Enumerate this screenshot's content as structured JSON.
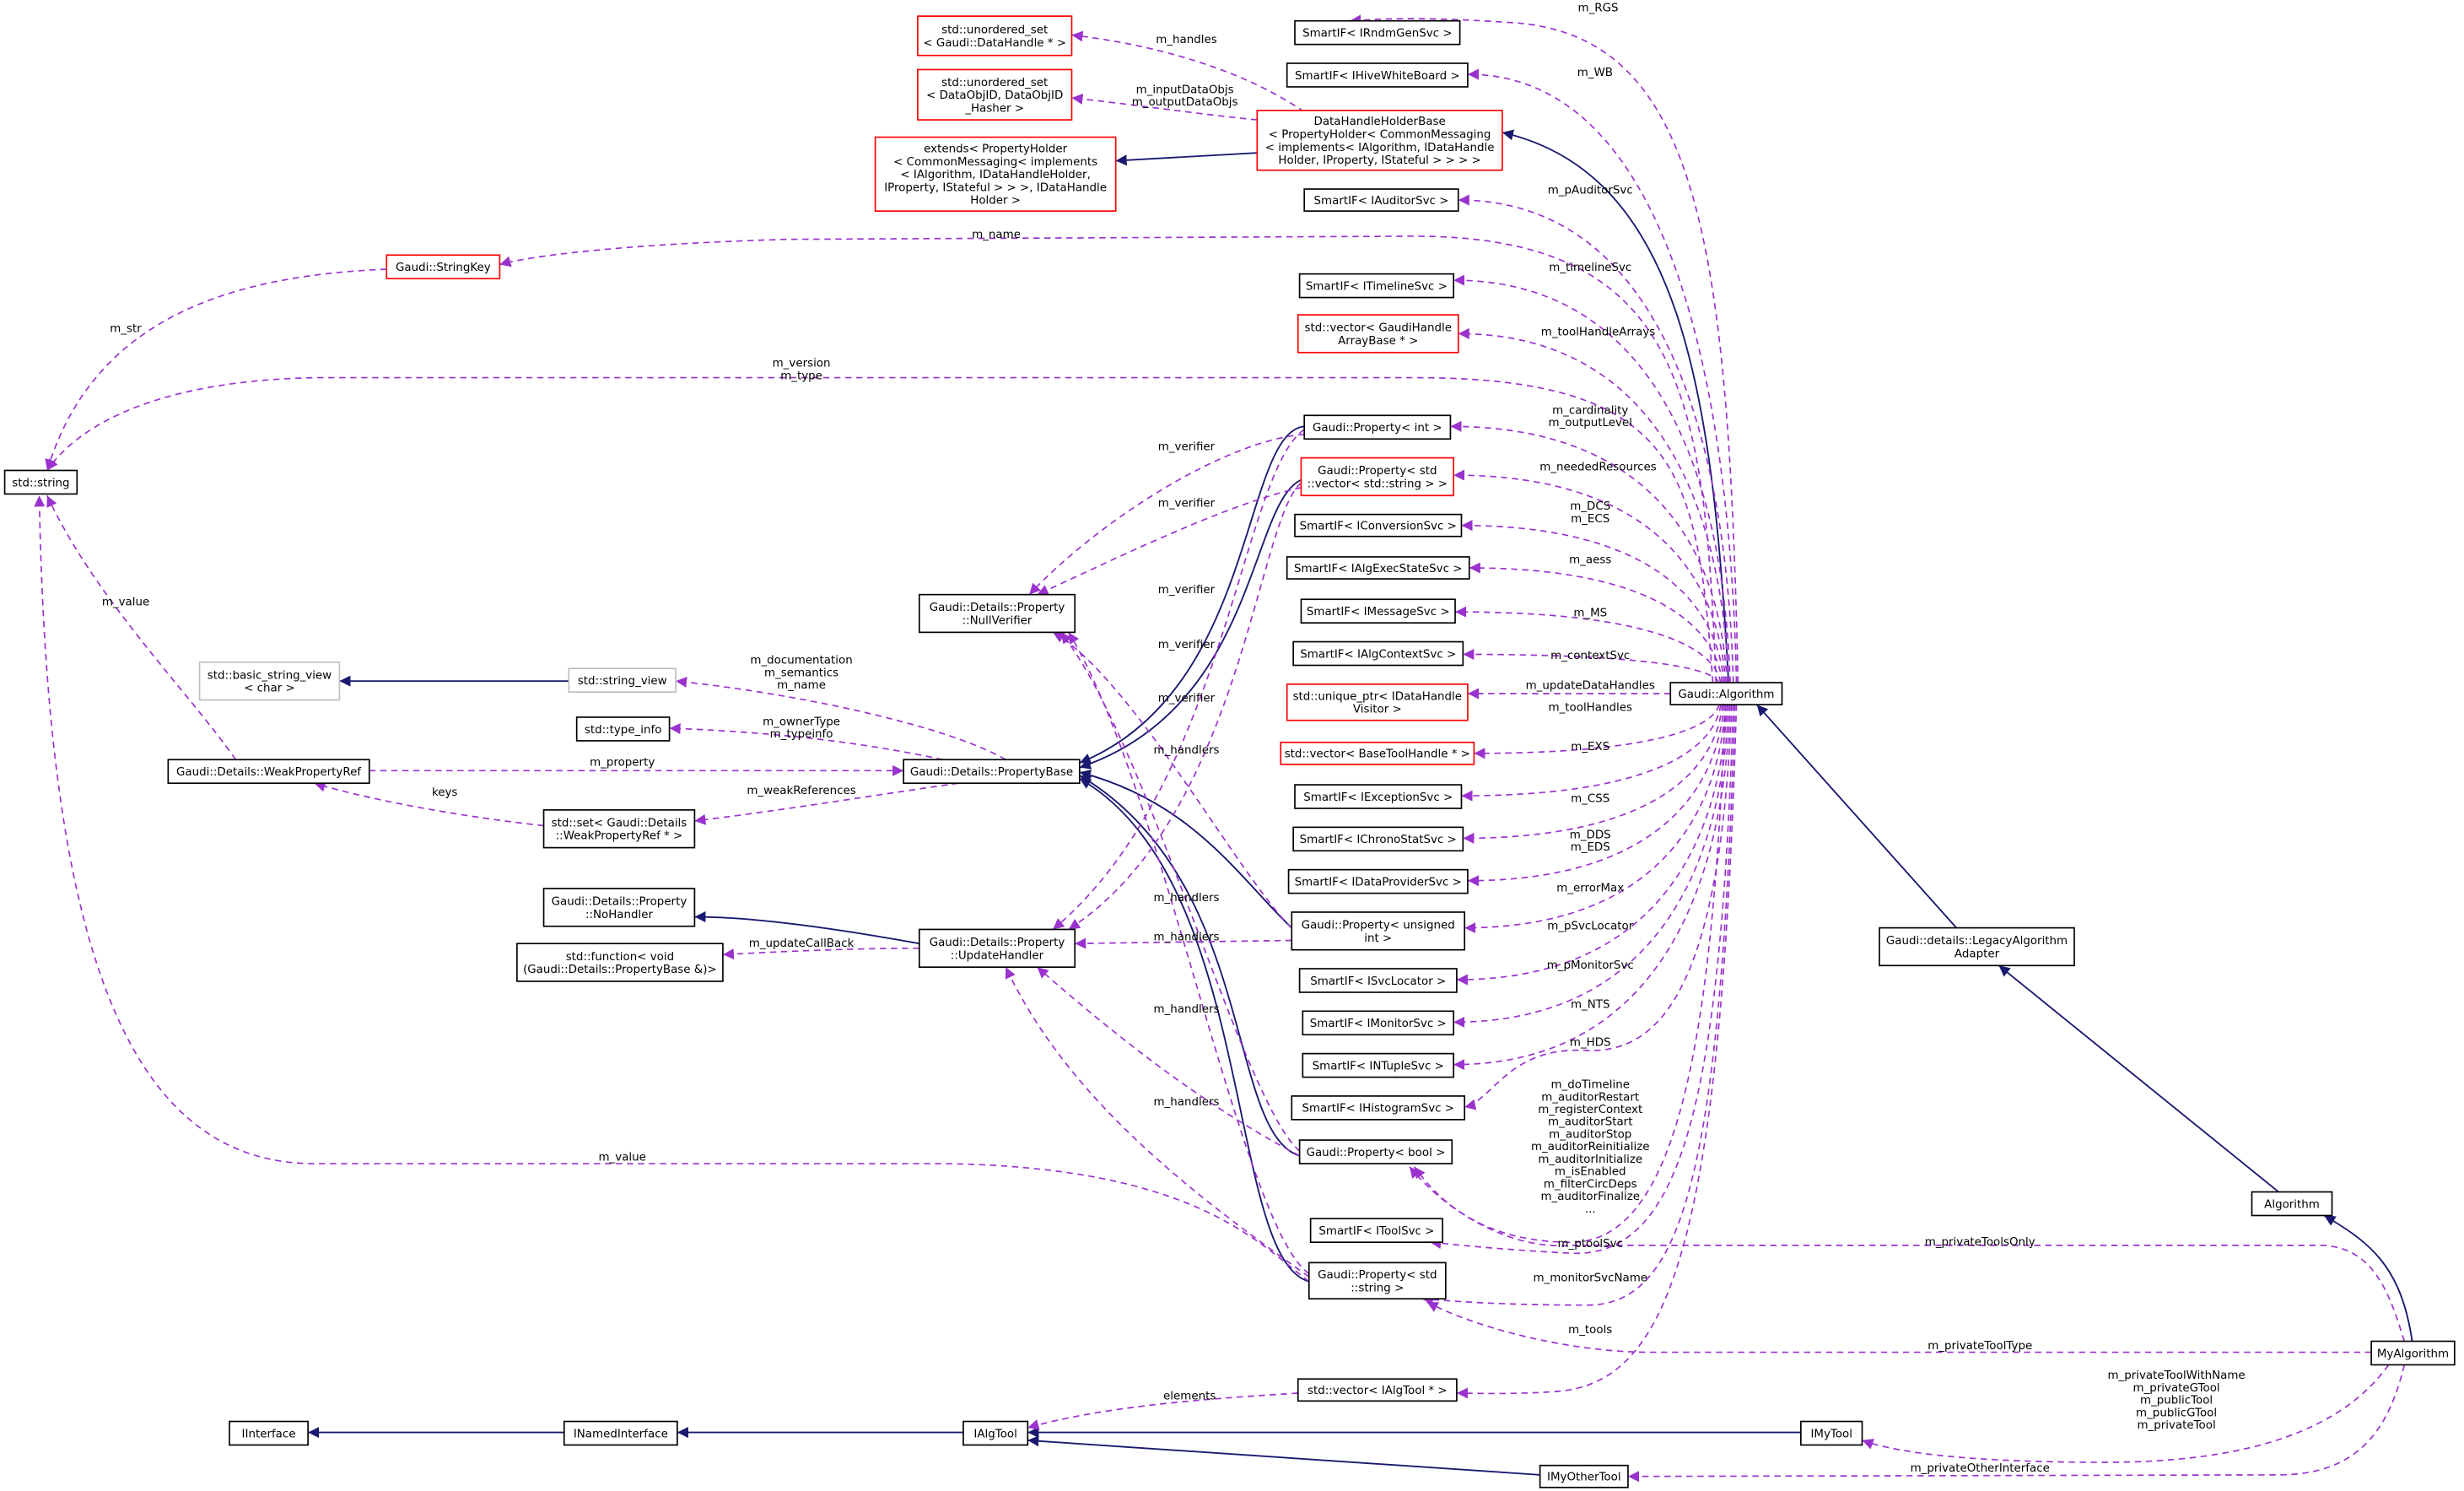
{
  "colors": {
    "inheritance_edge": "#191970",
    "usage_edge": "#9a32cd",
    "border_documented": "#000000",
    "border_truncated": "#ff0000",
    "border_external": "#bfbfbf",
    "focus_node_fill": "#bfbfbf",
    "background": "#ffffff"
  },
  "nodes": [
    {
      "id": "rndm",
      "lines": [
        "SmartIF< IRndmGenSvc >"
      ],
      "border": "black"
    },
    {
      "id": "hive",
      "lines": [
        "SmartIF< IHiveWhiteBoard >"
      ],
      "border": "black"
    },
    {
      "id": "uset_dh",
      "lines": [
        "std::unordered_set",
        "< Gaudi::DataHandle * >"
      ],
      "border": "red"
    },
    {
      "id": "uset_doid",
      "lines": [
        "std::unordered_set",
        "< DataObjID, DataObjID",
        "_Hasher >"
      ],
      "border": "red"
    },
    {
      "id": "dhhb",
      "lines": [
        "DataHandleHolderBase",
        "< PropertyHolder< CommonMessaging",
        "< implements< IAlgorithm, IDataHandle",
        "Holder, IProperty, IStateful > > > >"
      ],
      "border": "red"
    },
    {
      "id": "extends",
      "lines": [
        "extends< PropertyHolder",
        "< CommonMessaging< implements",
        "< IAlgorithm, IDataHandleHolder,",
        "IProperty, IStateful > > >, IDataHandle",
        "Holder >"
      ],
      "border": "red"
    },
    {
      "id": "auditor",
      "lines": [
        "SmartIF< IAuditorSvc >"
      ],
      "border": "black"
    },
    {
      "id": "stringkey",
      "lines": [
        "Gaudi::StringKey"
      ],
      "border": "red"
    },
    {
      "id": "timeline",
      "lines": [
        "SmartIF< ITimelineSvc >"
      ],
      "border": "black"
    },
    {
      "id": "gharr",
      "lines": [
        "std::vector< GaudiHandle",
        "ArrayBase * >"
      ],
      "border": "red"
    },
    {
      "id": "string",
      "lines": [
        "std::string"
      ],
      "border": "black"
    },
    {
      "id": "pint",
      "lines": [
        "Gaudi::Property< int >"
      ],
      "border": "black"
    },
    {
      "id": "pvec",
      "lines": [
        "Gaudi::Property< std",
        "::vector< std::string > >"
      ],
      "border": "red"
    },
    {
      "id": "conv",
      "lines": [
        "SmartIF< IConversionSvc >"
      ],
      "border": "black"
    },
    {
      "id": "aess",
      "lines": [
        "SmartIF< IAlgExecStateSvc >"
      ],
      "border": "black"
    },
    {
      "id": "msg",
      "lines": [
        "SmartIF< IMessageSvc >"
      ],
      "border": "black"
    },
    {
      "id": "nullver",
      "lines": [
        "Gaudi::Details::Property",
        "::NullVerifier"
      ],
      "border": "black"
    },
    {
      "id": "ctx",
      "lines": [
        "SmartIF< IAlgContextSvc >"
      ],
      "border": "black"
    },
    {
      "id": "bsv",
      "lines": [
        "std::basic_string_view",
        "< char >"
      ],
      "border": "gray"
    },
    {
      "id": "sv",
      "lines": [
        "std::string_view"
      ],
      "border": "gray"
    },
    {
      "id": "uptr",
      "lines": [
        "std::unique_ptr< IDataHandle",
        "Visitor >"
      ],
      "border": "red"
    },
    {
      "id": "galg",
      "lines": [
        "Gaudi::Algorithm"
      ],
      "border": "black"
    },
    {
      "id": "typeinfo",
      "lines": [
        "std::type_info"
      ],
      "border": "black"
    },
    {
      "id": "vbth",
      "lines": [
        "std::vector< BaseToolHandle * >"
      ],
      "border": "red"
    },
    {
      "id": "wpr",
      "lines": [
        "Gaudi::Details::WeakPropertyRef"
      ],
      "border": "black"
    },
    {
      "id": "pbase",
      "lines": [
        "Gaudi::Details::PropertyBase"
      ],
      "border": "black"
    },
    {
      "id": "set",
      "lines": [
        "std::set< Gaudi::Details",
        "::WeakPropertyRef * >"
      ],
      "border": "black"
    },
    {
      "id": "exc",
      "lines": [
        "SmartIF< IExceptionSvc >"
      ],
      "border": "black"
    },
    {
      "id": "chrono",
      "lines": [
        "SmartIF< IChronoStatSvc >"
      ],
      "border": "black"
    },
    {
      "id": "dps",
      "lines": [
        "SmartIF< IDataProviderSvc >"
      ],
      "border": "black"
    },
    {
      "id": "nohandler",
      "lines": [
        "Gaudi::Details::Property",
        "::NoHandler"
      ],
      "border": "black"
    },
    {
      "id": "puns",
      "lines": [
        "Gaudi::Property< unsigned",
        "int >"
      ],
      "border": "black"
    },
    {
      "id": "legacy",
      "lines": [
        "Gaudi::details::LegacyAlgorithm",
        "Adapter"
      ],
      "border": "black"
    },
    {
      "id": "uhandler",
      "lines": [
        "Gaudi::Details::Property",
        "::UpdateHandler"
      ],
      "border": "black"
    },
    {
      "id": "func",
      "lines": [
        "std::function< void",
        "(Gaudi::Details::PropertyBase &)>"
      ],
      "border": "black"
    },
    {
      "id": "svcloc",
      "lines": [
        "SmartIF< ISvcLocator >"
      ],
      "border": "black"
    },
    {
      "id": "mon",
      "lines": [
        "SmartIF< IMonitorSvc >"
      ],
      "border": "black"
    },
    {
      "id": "ntuple",
      "lines": [
        "SmartIF< INTupleSvc >"
      ],
      "border": "black"
    },
    {
      "id": "hist",
      "lines": [
        "SmartIF< IHistogramSvc >"
      ],
      "border": "black"
    },
    {
      "id": "pbool",
      "lines": [
        "Gaudi::Property< bool >"
      ],
      "border": "black"
    },
    {
      "id": "alg",
      "lines": [
        "Algorithm"
      ],
      "border": "black"
    },
    {
      "id": "toolsvc",
      "lines": [
        "SmartIF< IToolSvc >"
      ],
      "border": "black"
    },
    {
      "id": "pstr",
      "lines": [
        "Gaudi::Property< std",
        "::string >"
      ],
      "border": "black"
    },
    {
      "id": "myalg",
      "lines": [
        "MyAlgorithm"
      ],
      "border": "focus"
    },
    {
      "id": "valgtool",
      "lines": [
        "std::vector< IAlgTool * >"
      ],
      "border": "black"
    },
    {
      "id": "iinterface",
      "lines": [
        "IInterface"
      ],
      "border": "black"
    },
    {
      "id": "inamed",
      "lines": [
        "INamedInterface"
      ],
      "border": "black"
    },
    {
      "id": "ialgtool",
      "lines": [
        "IAlgTool"
      ],
      "border": "black"
    },
    {
      "id": "imytool",
      "lines": [
        "IMyTool"
      ],
      "border": "black"
    },
    {
      "id": "imyother",
      "lines": [
        "IMyOtherTool"
      ],
      "border": "black"
    }
  ],
  "edges": [
    {
      "from": "galg",
      "to": "dhhb",
      "style": "inherit",
      "labels": []
    },
    {
      "from": "dhhb",
      "to": "extends",
      "style": "inherit",
      "labels": []
    },
    {
      "from": "legacy",
      "to": "galg",
      "style": "inherit",
      "labels": []
    },
    {
      "from": "alg",
      "to": "legacy",
      "style": "inherit",
      "labels": []
    },
    {
      "from": "myalg",
      "to": "alg",
      "style": "inherit",
      "labels": []
    },
    {
      "from": "inamed",
      "to": "iinterface",
      "style": "inherit",
      "labels": []
    },
    {
      "from": "ialgtool",
      "to": "inamed",
      "style": "inherit",
      "labels": []
    },
    {
      "from": "imytool",
      "to": "ialgtool",
      "style": "inherit",
      "labels": []
    },
    {
      "from": "imyother",
      "to": "ialgtool",
      "style": "inherit",
      "labels": []
    },
    {
      "from": "sv",
      "to": "bsv",
      "style": "inherit",
      "labels": []
    },
    {
      "from": "uhandler",
      "to": "nohandler",
      "style": "inherit",
      "labels": []
    },
    {
      "from": "pint",
      "to": "pbase",
      "style": "inherit",
      "labels": []
    },
    {
      "from": "pvec",
      "to": "pbase",
      "style": "inherit",
      "labels": []
    },
    {
      "from": "puns",
      "to": "pbase",
      "style": "inherit",
      "labels": []
    },
    {
      "from": "pbool",
      "to": "pbase",
      "style": "inherit",
      "labels": []
    },
    {
      "from": "pstr",
      "to": "pbase",
      "style": "inherit",
      "labels": []
    },
    {
      "from": "dhhb",
      "to": "uset_dh",
      "style": "usage",
      "labels": [
        "m_handles"
      ]
    },
    {
      "from": "dhhb",
      "to": "uset_doid",
      "style": "usage",
      "labels": [
        "m_inputDataObjs",
        "m_outputDataObjs"
      ]
    },
    {
      "from": "galg",
      "to": "rndm",
      "style": "usage",
      "labels": [
        "m_RGS"
      ]
    },
    {
      "from": "galg",
      "to": "hive",
      "style": "usage",
      "labels": [
        "m_WB"
      ]
    },
    {
      "from": "galg",
      "to": "auditor",
      "style": "usage",
      "labels": [
        "m_pAuditorSvc"
      ]
    },
    {
      "from": "galg",
      "to": "stringkey",
      "style": "usage",
      "labels": [
        "m_name"
      ]
    },
    {
      "from": "galg",
      "to": "timeline",
      "style": "usage",
      "labels": [
        "m_timelineSvc"
      ]
    },
    {
      "from": "galg",
      "to": "gharr",
      "style": "usage",
      "labels": [
        "m_toolHandleArrays"
      ]
    },
    {
      "from": "galg",
      "to": "string",
      "style": "usage",
      "labels": [
        "m_version",
        "m_type"
      ]
    },
    {
      "from": "galg",
      "to": "pint",
      "style": "usage",
      "labels": [
        "m_cardinality",
        "m_outputLevel"
      ]
    },
    {
      "from": "galg",
      "to": "pvec",
      "style": "usage",
      "labels": [
        "m_neededResources"
      ]
    },
    {
      "from": "galg",
      "to": "conv",
      "style": "usage",
      "labels": [
        "m_DCS",
        "m_ECS"
      ]
    },
    {
      "from": "galg",
      "to": "aess",
      "style": "usage",
      "labels": [
        "m_aess"
      ]
    },
    {
      "from": "galg",
      "to": "msg",
      "style": "usage",
      "labels": [
        "m_MS"
      ]
    },
    {
      "from": "galg",
      "to": "ctx",
      "style": "usage",
      "labels": [
        "m_contextSvc"
      ]
    },
    {
      "from": "galg",
      "to": "uptr",
      "style": "usage",
      "labels": [
        "m_updateDataHandles"
      ]
    },
    {
      "from": "galg",
      "to": "vbth",
      "style": "usage",
      "labels": [
        "m_toolHandles"
      ]
    },
    {
      "from": "galg",
      "to": "exc",
      "style": "usage",
      "labels": [
        "m_EXS"
      ]
    },
    {
      "from": "galg",
      "to": "chrono",
      "style": "usage",
      "labels": [
        "m_CSS"
      ]
    },
    {
      "from": "galg",
      "to": "dps",
      "style": "usage",
      "labels": [
        "m_DDS",
        "m_EDS"
      ]
    },
    {
      "from": "galg",
      "to": "puns",
      "style": "usage",
      "labels": [
        "m_errorMax"
      ]
    },
    {
      "from": "galg",
      "to": "svcloc",
      "style": "usage",
      "labels": [
        "m_pSvcLocator"
      ]
    },
    {
      "from": "galg",
      "to": "mon",
      "style": "usage",
      "labels": [
        "m_pMonitorSvc"
      ]
    },
    {
      "from": "galg",
      "to": "ntuple",
      "style": "usage",
      "labels": [
        "m_NTS"
      ]
    },
    {
      "from": "galg",
      "to": "hist",
      "style": "usage",
      "labels": [
        "m_HDS"
      ]
    },
    {
      "from": "galg",
      "to": "pbool",
      "style": "usage",
      "labels": [
        "m_doTimeline",
        "m_auditorRestart",
        "m_registerContext",
        "m_auditorStart",
        "m_auditorStop",
        "m_auditorReinitialize",
        "m_auditorInitialize",
        "m_isEnabled",
        "m_filterCircDeps",
        "m_auditorFinalize",
        "..."
      ]
    },
    {
      "from": "galg",
      "to": "toolsvc",
      "style": "usage",
      "labels": [
        "m_ptoolSvc"
      ]
    },
    {
      "from": "galg",
      "to": "pstr",
      "style": "usage",
      "labels": [
        "m_monitorSvcName"
      ]
    },
    {
      "from": "galg",
      "to": "valgtool",
      "style": "usage",
      "labels": [
        "m_tools"
      ]
    },
    {
      "from": "myalg",
      "to": "pbool",
      "style": "usage",
      "labels": [
        "m_privateToolsOnly"
      ]
    },
    {
      "from": "myalg",
      "to": "pstr",
      "style": "usage",
      "labels": [
        "m_privateToolType"
      ]
    },
    {
      "from": "myalg",
      "to": "imytool",
      "style": "usage",
      "labels": [
        "m_privateToolWithName",
        "m_privateGTool",
        "m_publicTool",
        "m_publicGTool",
        "m_privateTool"
      ]
    },
    {
      "from": "myalg",
      "to": "imyother",
      "style": "usage",
      "labels": [
        "m_privateOtherInterface"
      ]
    },
    {
      "from": "valgtool",
      "to": "ialgtool",
      "style": "usage",
      "labels": [
        "elements"
      ]
    },
    {
      "from": "stringkey",
      "to": "string",
      "style": "usage",
      "labels": [
        "m_str"
      ]
    },
    {
      "from": "wpr",
      "to": "string",
      "style": "usage",
      "labels": [
        "m_value"
      ]
    },
    {
      "from": "pstr",
      "to": "string",
      "style": "usage",
      "labels": [
        "m_value"
      ]
    },
    {
      "from": "pbase",
      "to": "sv",
      "style": "usage",
      "labels": [
        "m_documentation",
        "m_semantics",
        "m_name"
      ]
    },
    {
      "from": "pbase",
      "to": "typeinfo",
      "style": "usage",
      "labels": [
        "m_ownerType",
        "m_typeinfo"
      ]
    },
    {
      "from": "wpr",
      "to": "pbase",
      "style": "usage",
      "labels": [
        "m_property"
      ]
    },
    {
      "from": "pbase",
      "to": "set",
      "style": "usage",
      "labels": [
        "m_weakReferences"
      ]
    },
    {
      "from": "set",
      "to": "wpr",
      "style": "usage",
      "labels": [
        "keys"
      ]
    },
    {
      "from": "uhandler",
      "to": "func",
      "style": "usage",
      "labels": [
        "m_updateCallBack"
      ]
    },
    {
      "from": "pint",
      "to": "nullver",
      "style": "usage",
      "labels": [
        "m_verifier"
      ]
    },
    {
      "from": "pvec",
      "to": "nullver",
      "style": "usage",
      "labels": [
        "m_verifier"
      ]
    },
    {
      "from": "puns",
      "to": "nullver",
      "style": "usage",
      "labels": [
        "m_verifier"
      ]
    },
    {
      "from": "pbool",
      "to": "nullver",
      "style": "usage",
      "labels": [
        "m_verifier"
      ]
    },
    {
      "from": "pstr",
      "to": "nullver",
      "style": "usage",
      "labels": [
        "m_verifier"
      ]
    },
    {
      "from": "pint",
      "to": "uhandler",
      "style": "usage",
      "labels": [
        "m_handlers"
      ]
    },
    {
      "from": "pvec",
      "to": "uhandler",
      "style": "usage",
      "labels": [
        "m_handlers"
      ]
    },
    {
      "from": "puns",
      "to": "uhandler",
      "style": "usage",
      "labels": [
        "m_handlers"
      ]
    },
    {
      "from": "pbool",
      "to": "uhandler",
      "style": "usage",
      "labels": [
        "m_handlers"
      ]
    },
    {
      "from": "pstr",
      "to": "uhandler",
      "style": "usage",
      "labels": [
        "m_handlers"
      ]
    }
  ]
}
